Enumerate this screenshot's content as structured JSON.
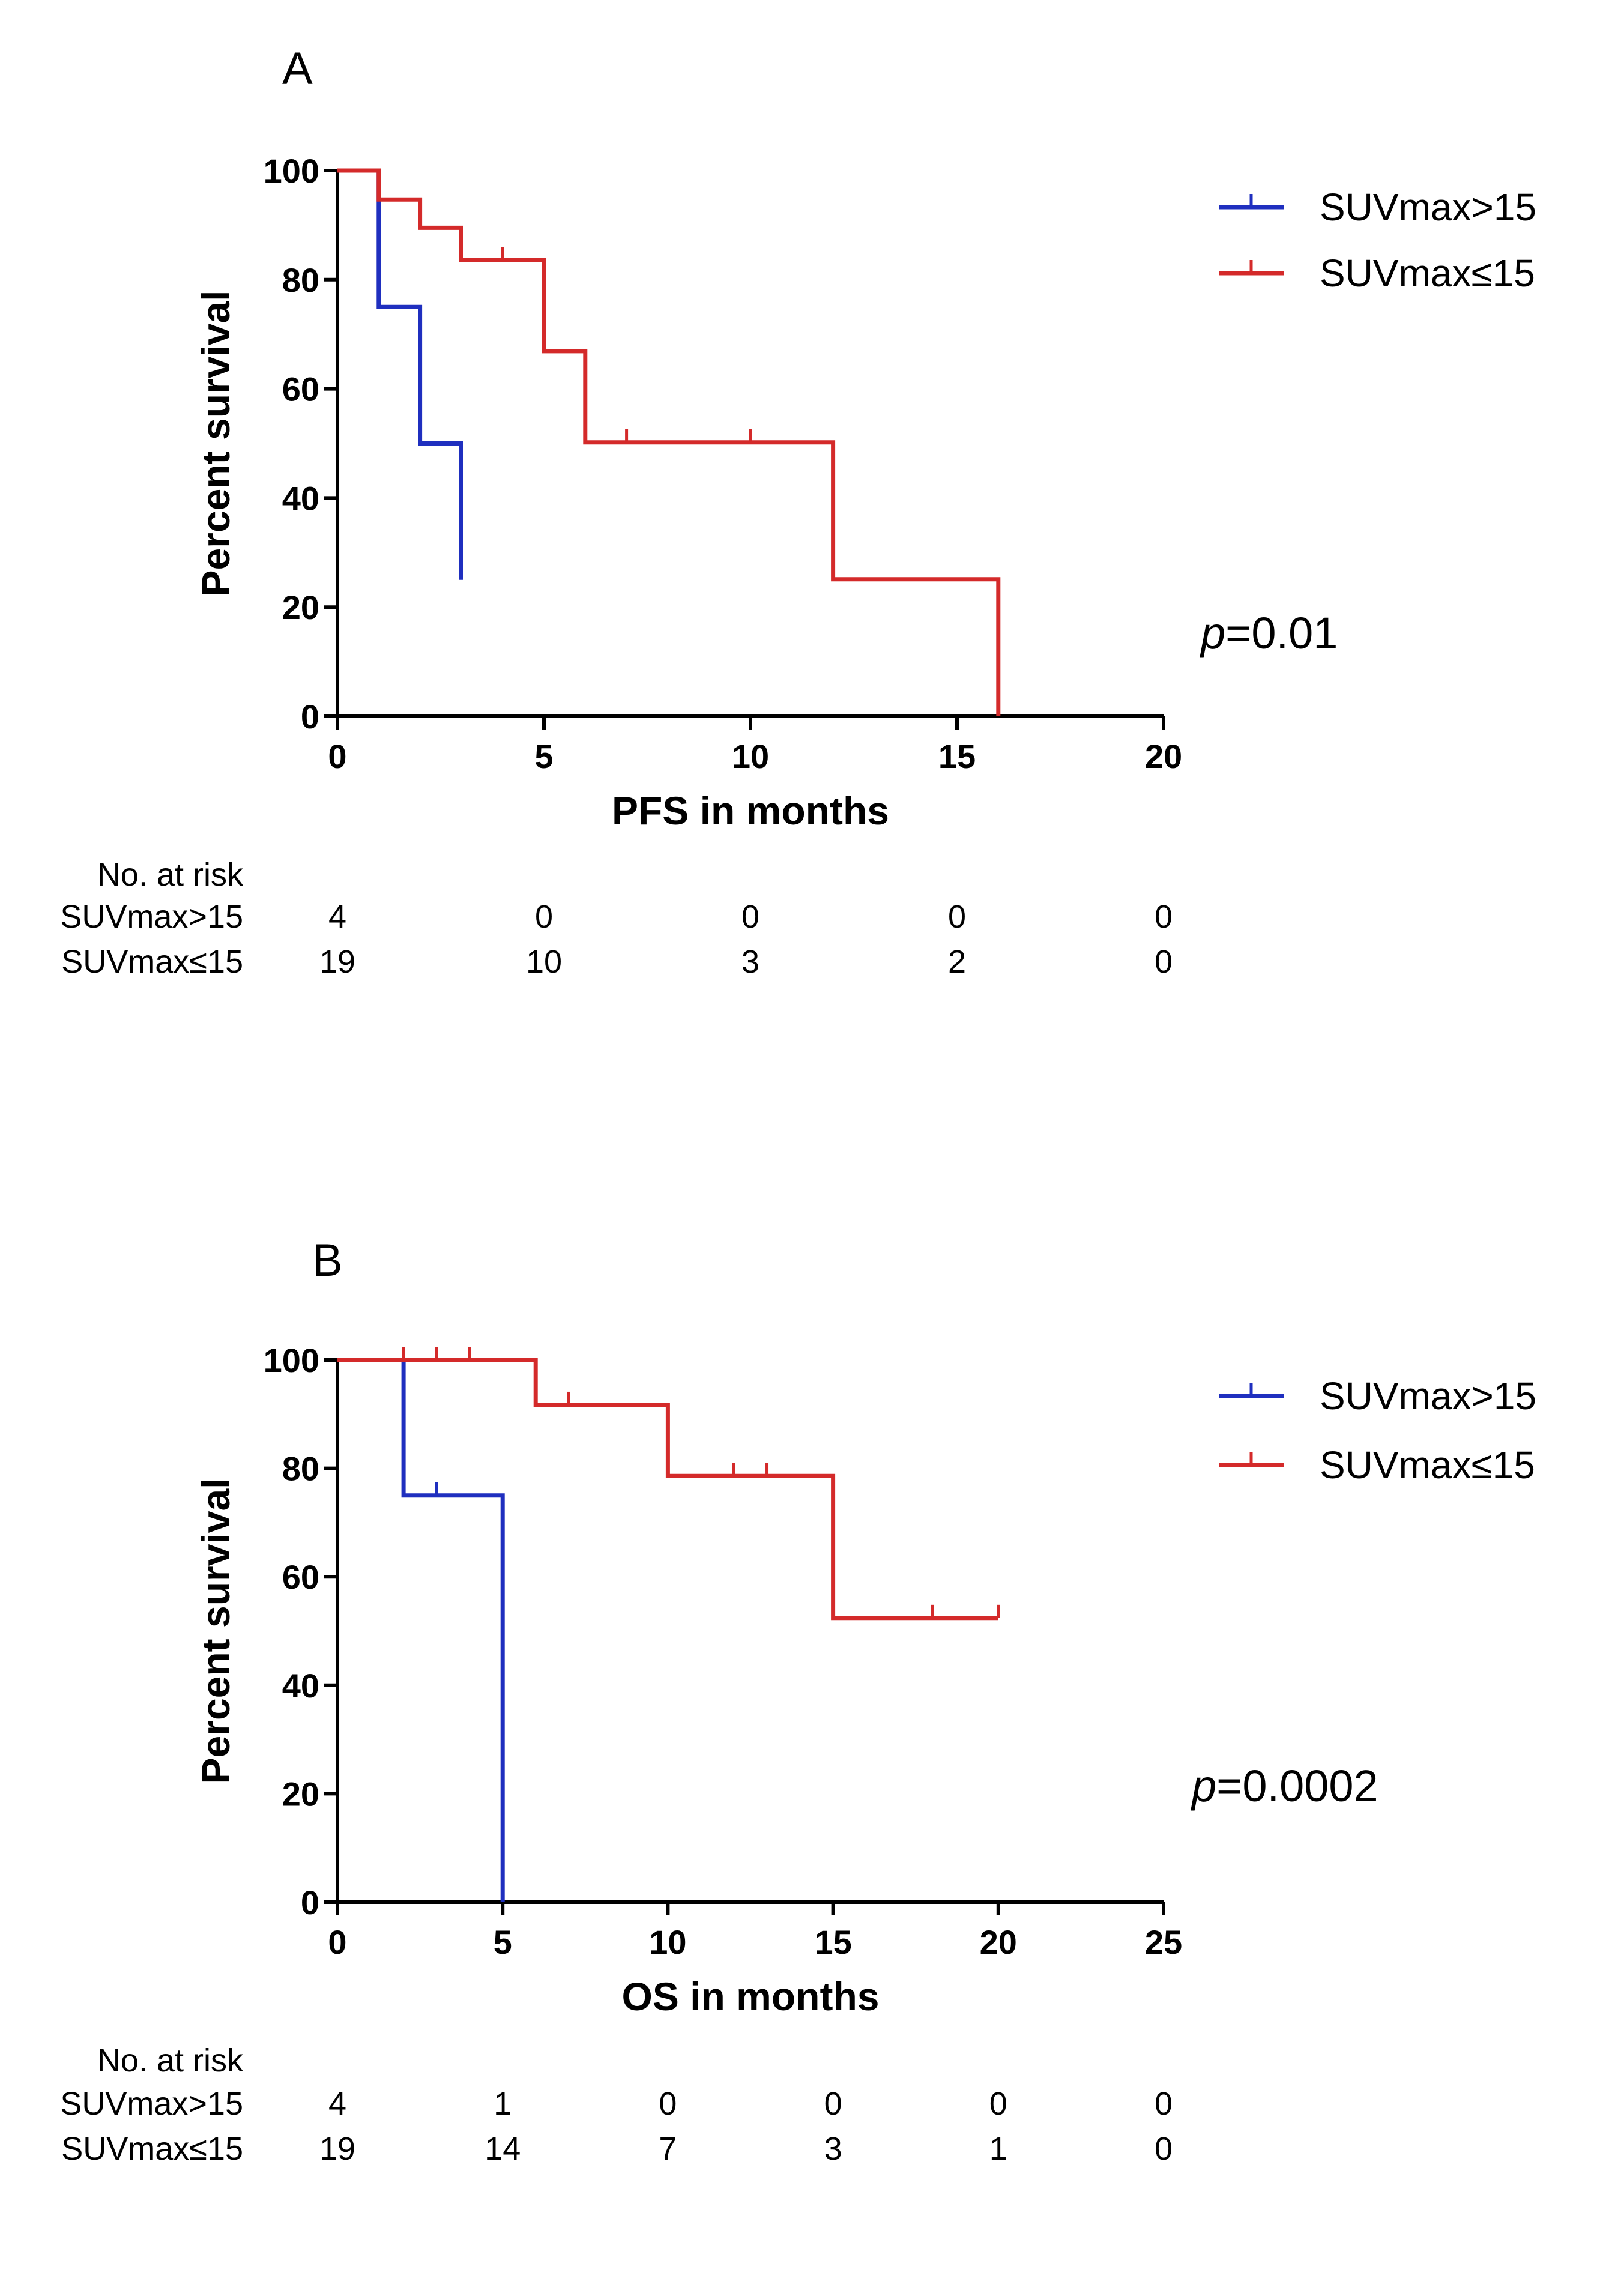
{
  "chart_data": [
    {
      "type": "line",
      "subtype": "kaplan-meier",
      "panel_label": "A",
      "xlabel": "PFS in months",
      "ylabel": "Percent survival",
      "xlim": [
        0,
        20
      ],
      "ylim": [
        0,
        100
      ],
      "xticks": [
        "0",
        "5",
        "10",
        "15",
        "20"
      ],
      "yticks": [
        "0",
        "20",
        "40",
        "60",
        "80",
        "100"
      ],
      "p_value": {
        "prefix": "p",
        "value": "=0.01"
      },
      "series": [
        {
          "name": "SUVmax>15",
          "color": "#1f2fbf",
          "steps": [
            [
              0,
              100
            ],
            [
              1,
              100
            ],
            [
              1,
              75
            ],
            [
              2,
              75
            ],
            [
              2,
              50
            ],
            [
              3,
              50
            ],
            [
              3,
              25
            ]
          ],
          "censored": []
        },
        {
          "name": "SUVmax≤15",
          "color": "#d42a2a",
          "steps": [
            [
              0,
              100
            ],
            [
              1,
              100
            ],
            [
              1,
              94.7
            ],
            [
              2,
              94.7
            ],
            [
              2,
              89.5
            ],
            [
              3,
              89.5
            ],
            [
              3,
              83.6
            ],
            [
              5,
              83.6
            ],
            [
              5,
              66.9
            ],
            [
              6,
              66.9
            ],
            [
              6,
              50.2
            ],
            [
              12,
              50.2
            ],
            [
              12,
              25.1
            ],
            [
              16,
              25.1
            ],
            [
              16,
              0
            ]
          ],
          "censored": [
            [
              4,
              83.6
            ],
            [
              7,
              50.2
            ],
            [
              10,
              50.2
            ]
          ]
        }
      ],
      "risk_table": {
        "header": "No. at risk",
        "rows": [
          {
            "label": "SUVmax>15",
            "values": [
              "4",
              "0",
              "0",
              "0",
              "0"
            ]
          },
          {
            "label": "SUVmax≤15",
            "values": [
              "19",
              "10",
              "3",
              "2",
              "0"
            ]
          }
        ]
      }
    },
    {
      "type": "line",
      "subtype": "kaplan-meier",
      "panel_label": "B",
      "xlabel": "OS in months",
      "ylabel": "Percent survival",
      "xlim": [
        0,
        25
      ],
      "ylim": [
        0,
        100
      ],
      "xticks": [
        "0",
        "5",
        "10",
        "15",
        "20",
        "25"
      ],
      "yticks": [
        "0",
        "20",
        "40",
        "60",
        "80",
        "100"
      ],
      "p_value": {
        "prefix": "p",
        "value": "=0.0002"
      },
      "series": [
        {
          "name": "SUVmax>15",
          "color": "#1f2fbf",
          "steps": [
            [
              0,
              100
            ],
            [
              2,
              100
            ],
            [
              2,
              75
            ],
            [
              5,
              75
            ],
            [
              5,
              0
            ]
          ],
          "censored": [
            [
              3,
              75
            ]
          ]
        },
        {
          "name": "SUVmax≤15",
          "color": "#d42a2a",
          "steps": [
            [
              0,
              100
            ],
            [
              6,
              100
            ],
            [
              6,
              91.7
            ],
            [
              10,
              91.7
            ],
            [
              10,
              78.6
            ],
            [
              15,
              78.6
            ],
            [
              15,
              52.4
            ],
            [
              20,
              52.4
            ]
          ],
          "censored": [
            [
              2,
              100
            ],
            [
              3,
              100
            ],
            [
              4,
              100
            ],
            [
              7,
              91.7
            ],
            [
              12,
              78.6
            ],
            [
              13,
              78.6
            ],
            [
              18,
              52.4
            ],
            [
              20,
              52.4
            ]
          ]
        }
      ],
      "risk_table": {
        "header": "No. at risk",
        "rows": [
          {
            "label": "SUVmax>15",
            "values": [
              "4",
              "1",
              "0",
              "0",
              "0",
              "0"
            ]
          },
          {
            "label": "SUVmax≤15",
            "values": [
              "19",
              "14",
              "7",
              "3",
              "1",
              "0"
            ]
          }
        ]
      }
    }
  ]
}
